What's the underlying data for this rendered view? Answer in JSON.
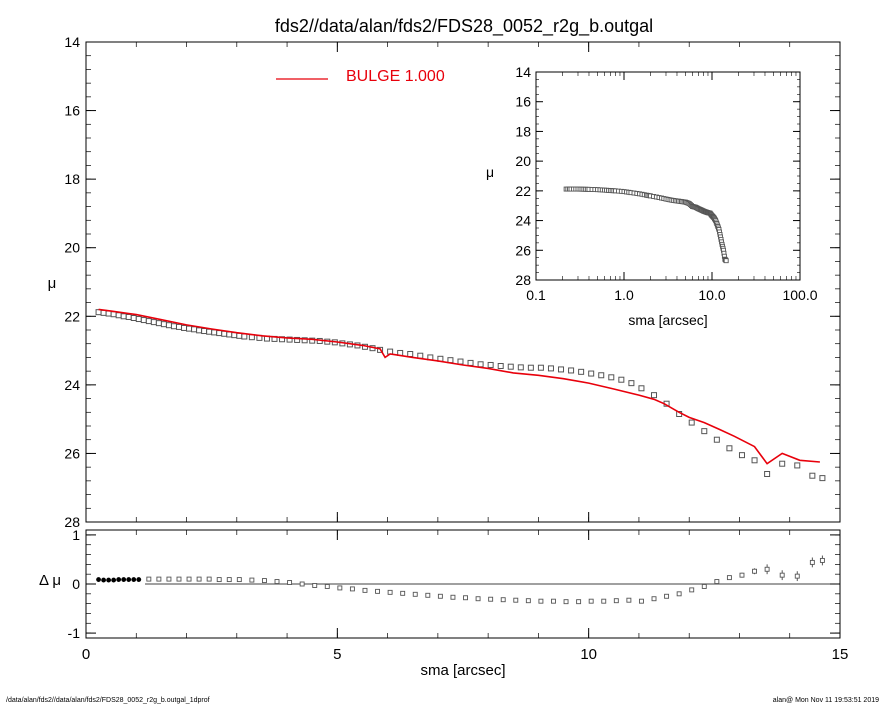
{
  "title": "fds2//data/alan/fds2/FDS28_0052_r2g_b.outgal",
  "footer": {
    "left": "/data/alan/fds2//data/alan/fds2/FDS28_0052_r2g_b.outgal_1dprof",
    "right": "alan@  Mon Nov 11 19:53:51 2019"
  },
  "colors": {
    "model": "#e8000b",
    "data": "#555555",
    "axes": "#000000"
  },
  "chart_data": [
    {
      "id": "profile",
      "type": "scatter",
      "xlabel": "sma [arcsec]",
      "ylabel": "μ",
      "xlim": [
        0,
        15
      ],
      "ylim": [
        28,
        14
      ],
      "y_inverted": true,
      "xticks": [
        0,
        5,
        10,
        15
      ],
      "yticks": [
        14,
        16,
        18,
        20,
        22,
        24,
        26,
        28
      ],
      "legend": {
        "label": "BULGE  1.000",
        "color": "#e8000b",
        "position": "top-center"
      },
      "series": [
        {
          "kind": "points",
          "x": [
            0.25,
            0.35,
            0.45,
            0.55,
            0.65,
            0.75,
            0.85,
            0.95,
            1.05,
            1.15,
            1.25,
            1.35,
            1.45,
            1.55,
            1.65,
            1.75,
            1.85,
            1.95,
            2.05,
            2.15,
            2.25,
            2.35,
            2.45,
            2.55,
            2.65,
            2.75,
            2.85,
            2.95,
            3.05,
            3.15,
            3.3,
            3.45,
            3.6,
            3.75,
            3.9,
            4.05,
            4.2,
            4.35,
            4.5,
            4.65,
            4.8,
            4.95,
            5.1,
            5.25,
            5.4,
            5.55,
            5.7,
            5.85,
            6.05,
            6.25,
            6.45,
            6.65,
            6.85,
            7.05,
            7.25,
            7.45,
            7.65,
            7.85,
            8.05,
            8.25,
            8.45,
            8.65,
            8.85,
            9.05,
            9.25,
            9.45,
            9.65,
            9.85,
            10.05,
            10.25,
            10.45,
            10.65,
            10.85,
            11.05,
            11.3,
            11.55,
            11.8,
            12.05,
            12.3,
            12.55,
            12.8,
            13.05,
            13.3,
            13.55,
            13.85,
            14.15,
            14.45,
            14.65
          ],
          "y": [
            21.88,
            21.9,
            21.92,
            21.94,
            21.97,
            22.0,
            22.02,
            22.05,
            22.08,
            22.11,
            22.14,
            22.17,
            22.2,
            22.23,
            22.26,
            22.29,
            22.31,
            22.34,
            22.36,
            22.38,
            22.41,
            22.43,
            22.45,
            22.47,
            22.49,
            22.51,
            22.53,
            22.55,
            22.57,
            22.59,
            22.61,
            22.63,
            22.65,
            22.66,
            22.67,
            22.68,
            22.69,
            22.7,
            22.71,
            22.72,
            22.74,
            22.76,
            22.79,
            22.82,
            22.85,
            22.89,
            22.93,
            22.98,
            23.03,
            23.07,
            23.1,
            23.15,
            23.2,
            23.24,
            23.28,
            23.32,
            23.36,
            23.4,
            23.42,
            23.45,
            23.47,
            23.49,
            23.5,
            23.5,
            23.52,
            23.55,
            23.58,
            23.62,
            23.67,
            23.72,
            23.78,
            23.85,
            23.95,
            24.1,
            24.3,
            24.55,
            24.85,
            25.1,
            25.35,
            25.6,
            25.85,
            26.05,
            26.2,
            26.6,
            26.3,
            26.35,
            26.65,
            26.72
          ]
        },
        {
          "kind": "line",
          "name": "BULGE  1.000",
          "x": [
            0.25,
            0.5,
            1.0,
            1.5,
            2.0,
            2.5,
            3.0,
            3.5,
            4.0,
            4.5,
            5.0,
            5.5,
            5.85,
            5.95,
            6.05,
            6.15,
            6.5,
            7.0,
            7.5,
            8.0,
            8.5,
            9.0,
            9.5,
            10.0,
            10.5,
            11.0,
            11.3,
            11.5,
            11.8,
            12.0,
            12.3,
            12.6,
            12.9,
            13.3,
            13.55,
            13.85,
            14.2,
            14.6
          ],
          "y": [
            21.8,
            21.85,
            21.95,
            22.1,
            22.25,
            22.37,
            22.48,
            22.57,
            22.63,
            22.67,
            22.75,
            22.85,
            22.95,
            23.2,
            23.1,
            23.12,
            23.2,
            23.3,
            23.42,
            23.52,
            23.65,
            23.72,
            23.82,
            23.95,
            24.12,
            24.3,
            24.42,
            24.55,
            24.8,
            24.95,
            25.1,
            25.3,
            25.5,
            25.8,
            26.3,
            26.0,
            26.2,
            26.25
          ]
        }
      ]
    },
    {
      "id": "inset",
      "type": "scatter",
      "xlabel": "sma [arcsec]",
      "ylabel": "μ",
      "xscale": "log",
      "xlim": [
        0.1,
        100.0
      ],
      "ylim": [
        28,
        14
      ],
      "y_inverted": true,
      "xtick_labels": [
        "0.1",
        "1.0",
        "10.0",
        "100.0"
      ],
      "yticks": [
        14,
        16,
        18,
        20,
        22,
        24,
        26,
        28
      ],
      "series": [
        {
          "kind": "points",
          "x": [
            0.22,
            0.25,
            0.3,
            0.35,
            0.4,
            0.5,
            0.6,
            0.7,
            0.8,
            1.0,
            1.2,
            1.5,
            1.8,
            2.0,
            2.5,
            3.0,
            3.5,
            4.0,
            4.5,
            5.0,
            5.5,
            6.0,
            6.5,
            7.0,
            7.5,
            8.0,
            8.5,
            9.0,
            9.5,
            10.0,
            10.5,
            11.0,
            11.5,
            12.0,
            12.5,
            13.0,
            13.5,
            14.0,
            14.5
          ],
          "y": [
            21.88,
            21.88,
            21.88,
            21.89,
            21.9,
            21.92,
            21.95,
            21.98,
            22.0,
            22.05,
            22.12,
            22.2,
            22.29,
            22.34,
            22.45,
            22.55,
            22.63,
            22.68,
            22.72,
            22.76,
            22.85,
            23.05,
            23.1,
            23.2,
            23.28,
            23.36,
            23.42,
            23.47,
            23.5,
            23.67,
            23.8,
            24.0,
            24.3,
            24.6,
            25.1,
            25.6,
            26.0,
            26.6,
            26.7
          ]
        }
      ]
    },
    {
      "id": "residual",
      "type": "scatter",
      "xlabel": "sma [arcsec]",
      "ylabel": "Δ μ",
      "xlim": [
        0,
        15
      ],
      "ylim": [
        -1.1,
        1.1
      ],
      "xticks": [
        0,
        5,
        10,
        15
      ],
      "yticks": [
        -1,
        0,
        1
      ],
      "series": [
        {
          "kind": "points",
          "x": [
            0.25,
            0.35,
            0.45,
            0.55,
            0.65,
            0.75,
            0.85,
            0.95,
            1.05,
            1.25,
            1.45,
            1.65,
            1.85,
            2.05,
            2.25,
            2.45,
            2.65,
            2.85,
            3.05,
            3.3,
            3.55,
            3.8,
            4.05,
            4.3,
            4.55,
            4.8,
            5.05,
            5.3,
            5.55,
            5.8,
            6.05,
            6.3,
            6.55,
            6.8,
            7.05,
            7.3,
            7.55,
            7.8,
            8.05,
            8.3,
            8.55,
            8.8,
            9.05,
            9.3,
            9.55,
            9.8,
            10.05,
            10.3,
            10.55,
            10.8,
            11.05,
            11.3,
            11.55,
            11.8,
            12.05,
            12.3,
            12.55,
            12.8,
            13.05,
            13.3,
            13.55,
            13.85,
            14.15,
            14.45,
            14.65
          ],
          "y": [
            0.09,
            0.08,
            0.08,
            0.08,
            0.09,
            0.09,
            0.09,
            0.09,
            0.09,
            0.1,
            0.1,
            0.1,
            0.1,
            0.1,
            0.1,
            0.1,
            0.09,
            0.09,
            0.09,
            0.08,
            0.07,
            0.05,
            0.03,
            0.0,
            -0.03,
            -0.05,
            -0.08,
            -0.1,
            -0.13,
            -0.15,
            -0.17,
            -0.19,
            -0.21,
            -0.23,
            -0.25,
            -0.27,
            -0.28,
            -0.3,
            -0.31,
            -0.32,
            -0.33,
            -0.34,
            -0.35,
            -0.35,
            -0.36,
            -0.36,
            -0.35,
            -0.35,
            -0.34,
            -0.33,
            -0.35,
            -0.3,
            -0.25,
            -0.2,
            -0.12,
            -0.05,
            0.05,
            0.13,
            0.18,
            0.26,
            0.3,
            0.18,
            0.16,
            0.44,
            0.48
          ],
          "err": [
            0.01,
            0.01,
            0.01,
            0.01,
            0.01,
            0.01,
            0.01,
            0.01,
            0.01,
            0.01,
            0.01,
            0.01,
            0.01,
            0.01,
            0.01,
            0.01,
            0.01,
            0.01,
            0.01,
            0.01,
            0.01,
            0.01,
            0.01,
            0.01,
            0.01,
            0.01,
            0.01,
            0.01,
            0.01,
            0.01,
            0.01,
            0.01,
            0.01,
            0.01,
            0.01,
            0.01,
            0.01,
            0.01,
            0.01,
            0.01,
            0.01,
            0.01,
            0.01,
            0.01,
            0.01,
            0.01,
            0.01,
            0.01,
            0.01,
            0.01,
            0.01,
            0.01,
            0.02,
            0.02,
            0.02,
            0.03,
            0.03,
            0.04,
            0.05,
            0.06,
            0.1,
            0.1,
            0.1,
            0.1,
            0.1
          ]
        }
      ]
    }
  ]
}
